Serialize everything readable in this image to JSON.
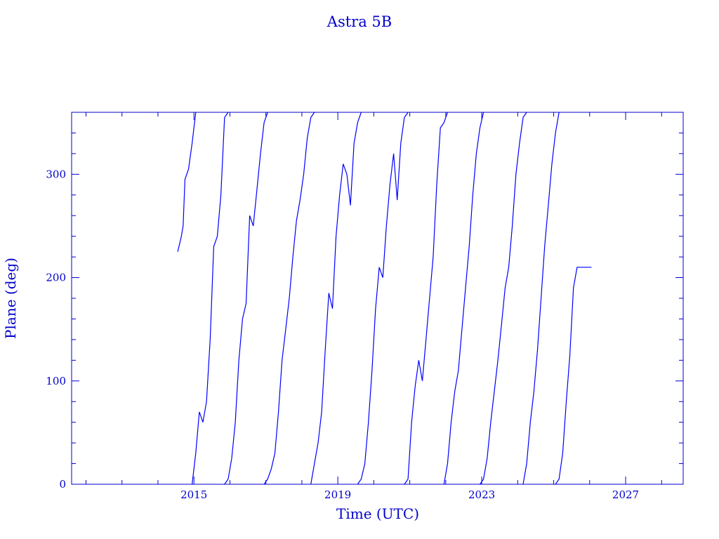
{
  "chart_data": {
    "type": "line",
    "title": "Astra 5B",
    "xlabel": "Time (UTC)",
    "ylabel": "Plane (deg)",
    "xlim": [
      2011.6,
      2028.6
    ],
    "ylim": [
      0,
      360
    ],
    "x_ticks": [
      {
        "value": 2015,
        "label": "2015"
      },
      {
        "value": 2019,
        "label": "2019"
      },
      {
        "value": 2023,
        "label": "2023"
      },
      {
        "value": 2027,
        "label": "2027"
      }
    ],
    "y_ticks": [
      {
        "value": 0,
        "label": "0"
      },
      {
        "value": 100,
        "label": "100"
      },
      {
        "value": 200,
        "label": "200"
      },
      {
        "value": 300,
        "label": "300"
      }
    ],
    "grid": false,
    "color": "#0000ff",
    "axis_color": "#0000cc",
    "wrap_at": 360,
    "series": [
      {
        "x": [
          2014.55,
          2014.65,
          2014.7,
          2014.75,
          2014.85,
          2014.95,
          2015.05,
          2015.15,
          2015.25,
          2015.35,
          2015.45,
          2015.55,
          2015.65,
          2015.75,
          2015.85,
          2015.95,
          2016.05,
          2016.15,
          2016.25,
          2016.35,
          2016.45,
          2016.55,
          2016.65,
          2016.75,
          2016.85,
          2016.95,
          2017.05,
          2017.15,
          2017.25,
          2017.35,
          2017.45,
          2017.55,
          2017.65,
          2017.75,
          2017.85,
          2017.95,
          2018.05,
          2018.15,
          2018.25,
          2018.35,
          2018.45,
          2018.55,
          2018.65,
          2018.75,
          2018.85,
          2018.95,
          2019.05,
          2019.15,
          2019.25,
          2019.35,
          2019.45,
          2019.55,
          2019.65,
          2019.75,
          2019.85,
          2019.95,
          2020.05,
          2020.15,
          2020.25,
          2020.35,
          2020.45,
          2020.55,
          2020.65,
          2020.75,
          2020.85,
          2020.95,
          2021.05,
          2021.15,
          2021.25,
          2021.35,
          2021.45,
          2021.55,
          2021.65,
          2021.75,
          2021.85,
          2021.95,
          2022.05,
          2022.15,
          2022.25,
          2022.35,
          2022.45,
          2022.55,
          2022.65,
          2022.75,
          2022.85,
          2022.95,
          2023.05,
          2023.15,
          2023.25,
          2023.35,
          2023.45,
          2023.55,
          2023.65,
          2023.75,
          2023.85,
          2023.95,
          2024.05,
          2024.15,
          2024.25,
          2024.35,
          2024.45,
          2024.55,
          2024.65,
          2024.75,
          2024.85,
          2024.95,
          2025.05,
          2025.15,
          2025.25,
          2025.35,
          2025.45,
          2025.55,
          2025.65,
          2025.75,
          2025.85,
          2025.95,
          2026.05
        ],
        "y": [
          225,
          240,
          250,
          295,
          305,
          330,
          30,
          70,
          60,
          80,
          140,
          230,
          240,
          280,
          355,
          5,
          25,
          60,
          120,
          160,
          175,
          260,
          250,
          285,
          320,
          350,
          5,
          15,
          30,
          70,
          120,
          150,
          180,
          220,
          255,
          275,
          300,
          335,
          355,
          20,
          40,
          70,
          130,
          185,
          170,
          240,
          280,
          310,
          300,
          270,
          330,
          350,
          5,
          20,
          60,
          110,
          170,
          210,
          200,
          250,
          290,
          320,
          275,
          330,
          355,
          5,
          60,
          95,
          120,
          100,
          140,
          180,
          220,
          290,
          345,
          350,
          20,
          60,
          90,
          110,
          150,
          190,
          230,
          280,
          320,
          345,
          5,
          25,
          60,
          90,
          120,
          155,
          190,
          210,
          250,
          300,
          330,
          355,
          20,
          60,
          90,
          130,
          180,
          230,
          270,
          310,
          340,
          5,
          30,
          80,
          125,
          190,
          210,
          210,
          210,
          210,
          210
        ]
      }
    ]
  }
}
